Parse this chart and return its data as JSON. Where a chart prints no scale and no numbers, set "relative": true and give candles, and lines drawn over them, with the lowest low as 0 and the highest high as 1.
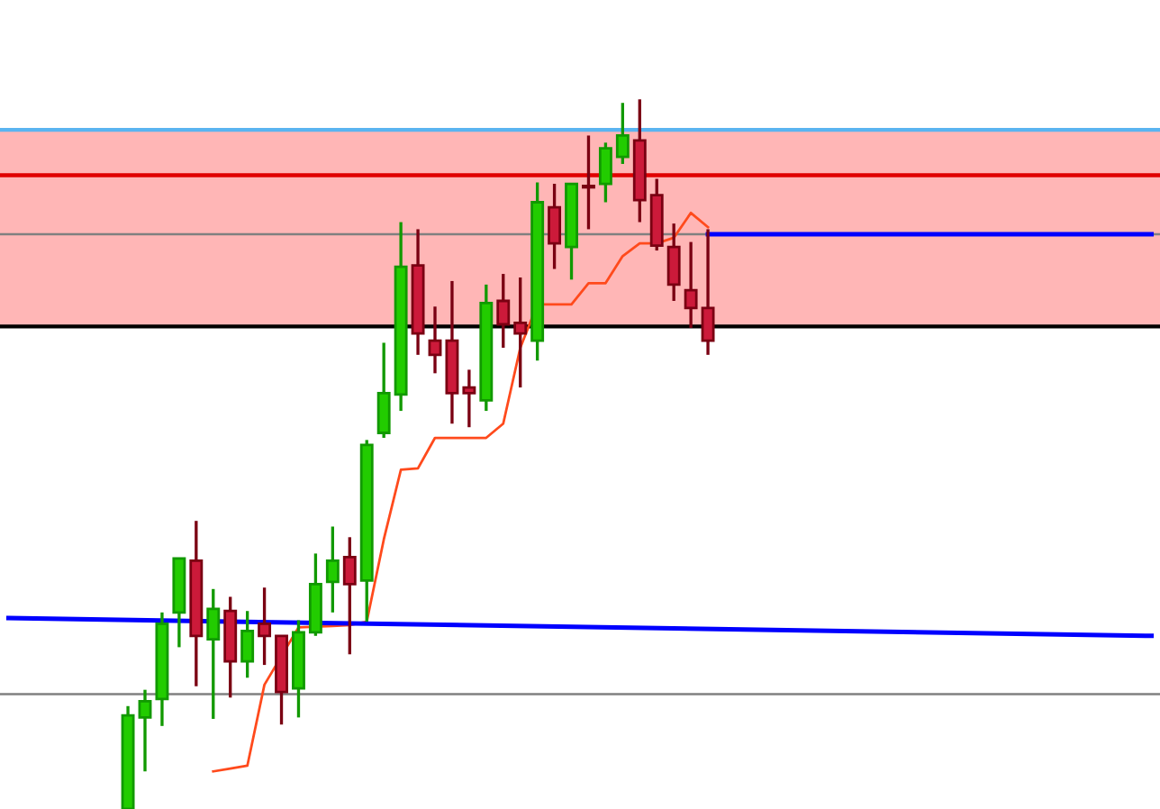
{
  "chart_data": {
    "type": "candlestick",
    "relative": true,
    "tick_labels": false,
    "grid": false,
    "legend": false,
    "categories": [
      null,
      null,
      null,
      null,
      null,
      null,
      null,
      null,
      null,
      null,
      null,
      null,
      null,
      null,
      null,
      null,
      null,
      null,
      null,
      null,
      null,
      null,
      null,
      null,
      null,
      null,
      null,
      null,
      null,
      null,
      null,
      null,
      null,
      null,
      null,
      null,
      null,
      null,
      null,
      null,
      null,
      null,
      null,
      null,
      null,
      null,
      null,
      null,
      null,
      null,
      null,
      null,
      null,
      null,
      null,
      null,
      null,
      null,
      null,
      null,
      null,
      null,
      null,
      null,
      null,
      null,
      null,
      null
    ],
    "ohlc": [
      null,
      null,
      null,
      null,
      null,
      null,
      null,
      [
        0,
        0.145,
        0,
        0.132
      ],
      [
        0.129,
        0.168,
        0.053,
        0.152
      ],
      [
        0.155,
        0.277,
        0.117,
        0.261
      ],
      [
        0.277,
        0.353,
        0.228,
        0.353
      ],
      [
        0.35,
        0.406,
        0.173,
        0.244
      ],
      [
        0.239,
        0.31,
        0.127,
        0.282
      ],
      [
        0.279,
        0.299,
        0.157,
        0.208
      ],
      [
        0.208,
        0.279,
        0.185,
        0.251
      ],
      [
        0.261,
        0.312,
        0.203,
        0.244
      ],
      [
        0.244,
        0.244,
        0.119,
        0.165
      ],
      [
        0.17,
        0.266,
        0.129,
        0.249
      ],
      [
        0.249,
        0.36,
        0.244,
        0.317
      ],
      [
        0.32,
        0.398,
        0.277,
        0.35
      ],
      [
        0.355,
        0.383,
        0.218,
        0.317
      ],
      [
        0.322,
        0.52,
        0.264,
        0.513
      ],
      [
        0.53,
        0.657,
        0.523,
        0.586
      ],
      [
        0.584,
        0.827,
        0.561,
        0.764
      ],
      [
        0.766,
        0.817,
        0.64,
        0.67
      ],
      [
        0.66,
        0.708,
        0.614,
        0.64
      ],
      [
        0.66,
        0.744,
        0.543,
        0.586
      ],
      [
        0.594,
        0.619,
        0.538,
        0.586
      ],
      [
        0.576,
        0.739,
        0.561,
        0.713
      ],
      [
        0.716,
        0.754,
        0.65,
        0.683
      ],
      [
        0.685,
        0.749,
        0.594,
        0.67
      ],
      [
        0.66,
        0.883,
        0.632,
        0.855
      ],
      [
        0.848,
        0.881,
        0.761,
        0.797
      ],
      [
        0.792,
        0.881,
        0.746,
        0.881
      ],
      [
        0.876,
        0.949,
        0.817,
        0.876
      ],
      [
        0.881,
        0.939,
        0.855,
        0.931
      ],
      [
        0.919,
        0.995,
        0.909,
        0.949
      ],
      [
        0.942,
        1,
        0.827,
        0.858
      ],
      [
        0.865,
        0.888,
        0.787,
        0.794
      ],
      [
        0.792,
        0.825,
        0.716,
        0.739
      ],
      [
        0.731,
        0.799,
        0.678,
        0.706
      ],
      [
        0.706,
        0.817,
        0.64,
        0.66
      ],
      null,
      null,
      null,
      null,
      null,
      null,
      null,
      null,
      null,
      null,
      null,
      null,
      null,
      null,
      null,
      null,
      null,
      null,
      null,
      null,
      null,
      null,
      null,
      null,
      null,
      null
    ],
    "colors": [
      null,
      null,
      null,
      null,
      null,
      null,
      null,
      "#22cc00",
      "#22cc00",
      "#22cc00",
      "#22cc00",
      "#cc1a3a",
      "#22cc00",
      "#cc1a3a",
      "#22cc00",
      "#cc1a3a",
      "#cc1a3a",
      "#22cc00",
      "#22cc00",
      "#22cc00",
      "#cc1a3a",
      "#22cc00",
      "#22cc00",
      "#22cc00",
      "#cc1a3a",
      "#cc1a3a",
      "#cc1a3a",
      "#cc1a3a",
      "#22cc00",
      "#cc1a3a",
      "#cc1a3a",
      "#22cc00",
      "#cc1a3a",
      "#22cc00",
      "#cc1a3a",
      "#22cc00",
      "#22cc00",
      "#cc1a3a",
      "#cc1a3a",
      "#cc1a3a",
      "#cc1a3a",
      "#cc1a3a",
      null,
      null,
      null,
      null,
      null,
      null,
      null,
      null,
      null,
      null,
      null,
      null,
      null,
      null,
      null,
      null,
      null,
      null,
      null,
      null,
      null,
      null,
      null,
      null,
      null,
      null
    ],
    "series": [
      {
        "type": "line",
        "color": "#ff4a1c",
        "values": [
          null,
          null,
          null,
          null,
          null,
          null,
          null,
          null,
          null,
          null,
          null,
          null,
          0.053,
          0.057,
          0.061,
          0.175,
          null,
          0.256,
          null,
          0.258,
          0.259,
          0.264,
          0.38,
          0.478,
          0.48,
          0.523,
          0.523,
          0.523,
          0.523,
          0.543,
          0.65,
          0.711,
          0.711,
          0.711,
          0.741,
          0.741,
          0.779,
          0.797,
          0.797,
          0.805,
          0.84,
          0.82,
          null,
          null,
          null,
          null,
          null,
          null,
          null,
          null,
          null,
          null,
          null,
          null,
          null,
          null,
          null,
          null,
          null,
          null,
          null,
          null,
          null,
          null,
          null,
          null,
          null,
          null
        ]
      },
      {
        "type": "line",
        "color": "#0000ff",
        "values": [
          0.269,
          null,
          null,
          null,
          null,
          null,
          null,
          null,
          null,
          null,
          null,
          null,
          null,
          null,
          null,
          null,
          null,
          null,
          null,
          null,
          null,
          null,
          null,
          null,
          null,
          null,
          null,
          null,
          null,
          null,
          null,
          null,
          null,
          null,
          null,
          null,
          null,
          null,
          null,
          null,
          null,
          null,
          null,
          null,
          null,
          null,
          null,
          null,
          null,
          null,
          null,
          null,
          null,
          null,
          null,
          null,
          null,
          null,
          null,
          null,
          null,
          null,
          null,
          null,
          null,
          null,
          null,
          0.244
        ]
      },
      {
        "type": "line",
        "color": "#0000ff",
        "values": [
          null,
          null,
          null,
          null,
          null,
          null,
          null,
          null,
          null,
          null,
          null,
          null,
          null,
          null,
          null,
          null,
          null,
          null,
          null,
          null,
          null,
          null,
          null,
          null,
          null,
          null,
          null,
          null,
          null,
          null,
          null,
          null,
          null,
          null,
          null,
          null,
          null,
          null,
          null,
          null,
          null,
          0.81,
          null,
          null,
          null,
          null,
          null,
          null,
          null,
          null,
          null,
          null,
          null,
          null,
          null,
          null,
          null,
          null,
          null,
          null,
          null,
          null,
          null,
          null,
          null,
          null,
          null,
          0.81
        ]
      }
    ],
    "ref_lines": [
      {
        "axis": "y",
        "value": 0.957,
        "color": "#5ab4f0"
      },
      {
        "axis": "y",
        "value": 0.893,
        "color": "#e00000"
      },
      {
        "axis": "y",
        "value": 0.81,
        "color": "#808080"
      },
      {
        "axis": "y",
        "value": 0.68,
        "color": "#000000"
      },
      {
        "axis": "y",
        "value": 0.162,
        "color": "#808080"
      }
    ],
    "bands": [
      {
        "axis": "y",
        "from": 0.68,
        "to": 0.957,
        "color": "#ffb6b6"
      }
    ]
  }
}
